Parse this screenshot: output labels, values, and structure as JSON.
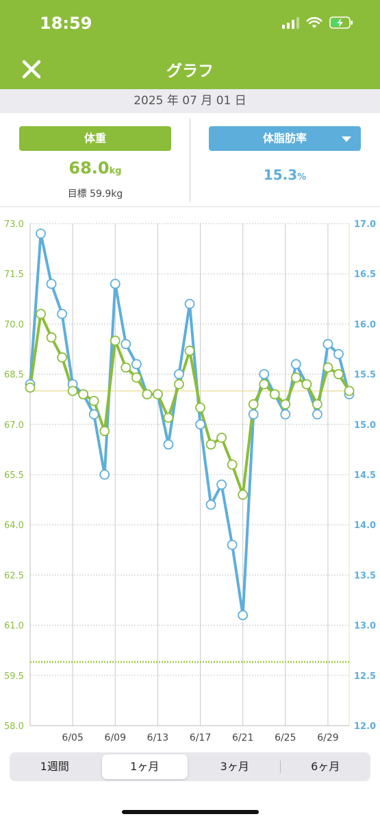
{
  "status": {
    "time": "18:59"
  },
  "nav": {
    "title": "グラフ",
    "close_icon": "close-icon"
  },
  "date": "2025 年 07 月 01 日",
  "weight": {
    "label": "体重",
    "value": "68.0",
    "unit": "kg",
    "goal": "目標 59.9kg",
    "color": "#8bbd3a"
  },
  "body_fat": {
    "label": "体脂肪率",
    "value": "15.3",
    "unit": "%",
    "color": "#5eaedb"
  },
  "tabs": [
    {
      "label": "1週間",
      "active": false
    },
    {
      "label": "1ヶ月",
      "active": true
    },
    {
      "label": "3ヶ月",
      "active": false
    },
    {
      "label": "6ヶ月",
      "active": false
    }
  ],
  "chart_data": {
    "type": "line",
    "x_ticks": [
      "6/05",
      "6/09",
      "6/13",
      "6/17",
      "6/21",
      "6/25",
      "6/29"
    ],
    "x_tick_days": [
      5,
      9,
      13,
      17,
      21,
      25,
      29
    ],
    "x_range": [
      1,
      31
    ],
    "left_axis": {
      "ticks": [
        "73.0",
        "71.5",
        "70.0",
        "68.5",
        "67.0",
        "65.5",
        "64.0",
        "62.5",
        "61.0",
        "59.5",
        "58.0"
      ],
      "range": [
        58.0,
        73.0
      ],
      "color": "#8bbd3a"
    },
    "right_axis": {
      "ticks": [
        "17.0",
        "16.5",
        "16.0",
        "15.5",
        "15.0",
        "14.5",
        "14.0",
        "13.5",
        "13.0",
        "12.5",
        "12.0"
      ],
      "range": [
        12.0,
        17.0
      ],
      "color": "#5eaedb"
    },
    "reference_lines": [
      {
        "value": 68.0,
        "axis": "left",
        "style": "solid",
        "color": "#e8d98f"
      },
      {
        "value": 59.9,
        "axis": "left",
        "style": "dotted",
        "color": "#a7cf5a"
      }
    ],
    "series": [
      {
        "axis": "left",
        "color": "#8bbd3a",
        "points": [
          [
            1,
            68.1
          ],
          [
            2,
            70.3
          ],
          [
            3,
            69.6
          ],
          [
            4,
            69.0
          ],
          [
            5,
            68.0
          ],
          [
            6,
            67.9
          ],
          [
            7,
            67.7
          ],
          [
            8,
            66.8
          ],
          [
            9,
            69.5
          ],
          [
            10,
            68.7
          ],
          [
            11,
            68.4
          ],
          [
            12,
            67.9
          ],
          [
            13,
            67.9
          ],
          [
            14,
            67.2
          ],
          [
            15,
            68.2
          ],
          [
            16,
            69.2
          ],
          [
            17,
            67.5
          ],
          [
            18,
            66.4
          ],
          [
            19,
            66.6
          ],
          [
            20,
            65.8
          ],
          [
            21,
            64.9
          ],
          [
            22,
            67.6
          ],
          [
            23,
            68.2
          ],
          [
            24,
            67.9
          ],
          [
            25,
            67.6
          ],
          [
            26,
            68.4
          ],
          [
            27,
            68.2
          ],
          [
            28,
            67.6
          ],
          [
            29,
            68.7
          ],
          [
            30,
            68.5
          ],
          [
            31,
            68.0
          ]
        ]
      },
      {
        "axis": "right",
        "color": "#5eaedb",
        "points": [
          [
            1,
            15.4
          ],
          [
            2,
            16.9
          ],
          [
            3,
            16.4
          ],
          [
            4,
            16.1
          ],
          [
            5,
            15.4
          ],
          [
            6,
            15.3
          ],
          [
            7,
            15.1
          ],
          [
            8,
            14.5
          ],
          [
            9,
            16.4
          ],
          [
            10,
            15.8
          ],
          [
            11,
            15.6
          ],
          [
            12,
            15.3
          ],
          [
            13,
            15.3
          ],
          [
            14,
            14.8
          ],
          [
            15,
            15.5
          ],
          [
            16,
            16.2
          ],
          [
            17,
            15.0
          ],
          [
            18,
            14.2
          ],
          [
            19,
            14.4
          ],
          [
            20,
            13.8
          ],
          [
            21,
            13.1
          ],
          [
            22,
            15.1
          ],
          [
            23,
            15.5
          ],
          [
            24,
            15.3
          ],
          [
            25,
            15.1
          ],
          [
            26,
            15.6
          ],
          [
            27,
            15.4
          ],
          [
            28,
            15.1
          ],
          [
            29,
            15.8
          ],
          [
            30,
            15.7
          ],
          [
            31,
            15.3
          ]
        ]
      }
    ]
  }
}
